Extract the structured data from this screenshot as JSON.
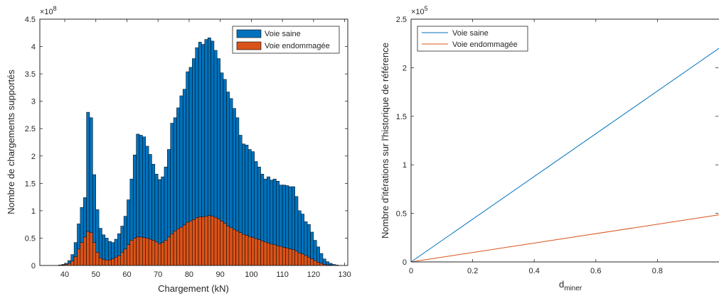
{
  "chart_data": [
    {
      "type": "bar",
      "xlabel": "Chargement (kN)",
      "ylabel": "Nombre de chargements supportés",
      "y_multiplier": "×10^8",
      "y_multiplier_base": "×10",
      "y_multiplier_exp": "8",
      "xlim": [
        32,
        131
      ],
      "ylim": [
        0,
        4.5
      ],
      "xticks": [
        40,
        50,
        60,
        70,
        80,
        90,
        100,
        110,
        120,
        130
      ],
      "yticks": [
        0,
        0.5,
        1,
        1.5,
        2,
        2.5,
        3,
        3.5,
        4,
        4.5
      ],
      "yticklabels": [
        "0",
        "0.5",
        "1",
        "1.5",
        "2",
        "2.5",
        "3",
        "3.5",
        "4",
        "4.5"
      ],
      "grid": false,
      "legend_position": "top-right",
      "bar_start": 33,
      "bar_width": 1,
      "series": [
        {
          "name": "Voie saine",
          "color": "#0072BD",
          "values": [
            0,
            0,
            0,
            0,
            0,
            0.01,
            0.02,
            0.04,
            0.09,
            0.2,
            0.42,
            0.76,
            1.06,
            1.24,
            2.8,
            2.7,
            1.66,
            1.02,
            0.68,
            0.56,
            0.5,
            0.44,
            0.42,
            0.48,
            0.58,
            0.72,
            0.9,
            1.2,
            1.58,
            2.02,
            2.4,
            2.38,
            2.35,
            2.18,
            2.03,
            1.85,
            1.67,
            1.57,
            1.62,
            1.8,
            2.12,
            2.6,
            2.7,
            2.88,
            3.1,
            3.22,
            3.54,
            3.62,
            3.78,
            3.98,
            4.08,
            4.04,
            4.13,
            4.16,
            4.1,
            3.93,
            3.78,
            3.52,
            3.4,
            3.17,
            3.05,
            2.87,
            2.7,
            2.38,
            2.22,
            2.2,
            2.12,
            2.08,
            1.9,
            1.8,
            1.67,
            1.58,
            1.62,
            1.56,
            1.58,
            1.54,
            1.47,
            1.47,
            1.46,
            1.44,
            1.44,
            1.26,
            1.0,
            0.94,
            0.8,
            0.75,
            0.61,
            0.46,
            0.34,
            0.22,
            0.12,
            0.07,
            0.04,
            0.02,
            0.01,
            0,
            0,
            0
          ]
        },
        {
          "name": "Voie endommagée",
          "color": "#D95319",
          "values": [
            0,
            0,
            0,
            0,
            0,
            0,
            0.01,
            0.02,
            0.04,
            0.08,
            0.16,
            0.3,
            0.42,
            0.52,
            0.62,
            0.6,
            0.42,
            0.24,
            0.14,
            0.11,
            0.1,
            0.1,
            0.12,
            0.15,
            0.18,
            0.24,
            0.3,
            0.38,
            0.46,
            0.5,
            0.52,
            0.52,
            0.51,
            0.5,
            0.48,
            0.46,
            0.43,
            0.4,
            0.42,
            0.46,
            0.52,
            0.58,
            0.63,
            0.67,
            0.7,
            0.74,
            0.79,
            0.81,
            0.84,
            0.87,
            0.89,
            0.89,
            0.9,
            0.91,
            0.9,
            0.88,
            0.85,
            0.81,
            0.77,
            0.72,
            0.69,
            0.66,
            0.63,
            0.6,
            0.57,
            0.55,
            0.53,
            0.51,
            0.49,
            0.47,
            0.45,
            0.43,
            0.41,
            0.39,
            0.38,
            0.36,
            0.35,
            0.33,
            0.32,
            0.3,
            0.29,
            0.26,
            0.23,
            0.21,
            0.18,
            0.15,
            0.12,
            0.09,
            0.06,
            0.04,
            0.02,
            0.01,
            0.01,
            0,
            0,
            0,
            0,
            0
          ]
        }
      ]
    },
    {
      "type": "line",
      "xlabel_main": "d",
      "xlabel_sub": "miner",
      "ylabel": "Nombre d'itérations sur l'historique de référence",
      "y_multiplier": "×10^5",
      "y_multiplier_base": "×10",
      "y_multiplier_exp": "5",
      "xlim": [
        0,
        1
      ],
      "ylim": [
        0,
        2.5
      ],
      "xticks": [
        0,
        0.2,
        0.4,
        0.6,
        0.8
      ],
      "xticklabels": [
        "0",
        "0.2",
        "0.4",
        "0.6",
        "0.8"
      ],
      "yticks": [
        0,
        0.5,
        1,
        1.5,
        2,
        2.5
      ],
      "yticklabels": [
        "0",
        "0.5",
        "1",
        "1.5",
        "2",
        "2.5"
      ],
      "grid": false,
      "legend_position": "top-left",
      "series": [
        {
          "name": "Voie saine",
          "color": "#0072BD",
          "x": [
            0,
            1
          ],
          "y": [
            0,
            2.2
          ]
        },
        {
          "name": "Voie endommagée",
          "color": "#D95319",
          "x": [
            0,
            1
          ],
          "y": [
            0,
            0.485
          ]
        }
      ]
    }
  ]
}
